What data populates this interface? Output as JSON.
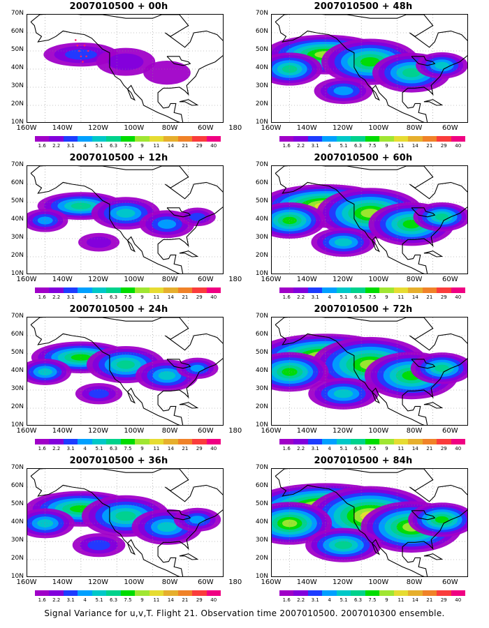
{
  "footer": "Signal Variance for u,v,T. Flight 21. Observation time 2007010500. 2007010300 ensemble.",
  "y_labels": [
    "70N",
    "60N",
    "50N",
    "40N",
    "30N",
    "20N",
    "10N"
  ],
  "x_labels": [
    "180",
    "160W",
    "140W",
    "120W",
    "100W",
    "80W",
    "60W"
  ],
  "colorbar": {
    "labels": [
      "1.6",
      "2.2",
      "3.1",
      "4",
      "5.1",
      "6.3",
      "7.5",
      "9",
      "11",
      "14",
      "21",
      "29",
      "40"
    ],
    "colors": [
      "#a000c8",
      "#8200dc",
      "#1e3cff",
      "#00a0ff",
      "#00c8c8",
      "#00d28c",
      "#00dc00",
      "#a0e632",
      "#e6dc32",
      "#e6af2d",
      "#f08228",
      "#fa3c3c",
      "#f00082"
    ]
  },
  "panels": [
    {
      "title": "2007010500 + 00h",
      "level": 0
    },
    {
      "title": "2007010500 + 48h",
      "level": 4
    },
    {
      "title": "2007010500 + 12h",
      "level": 1
    },
    {
      "title": "2007010500 + 60h",
      "level": 5
    },
    {
      "title": "2007010500 + 24h",
      "level": 2
    },
    {
      "title": "2007010500 + 72h",
      "level": 6
    },
    {
      "title": "2007010500 + 36h",
      "level": 3
    },
    {
      "title": "2007010500 + 84h",
      "level": 7
    }
  ]
}
